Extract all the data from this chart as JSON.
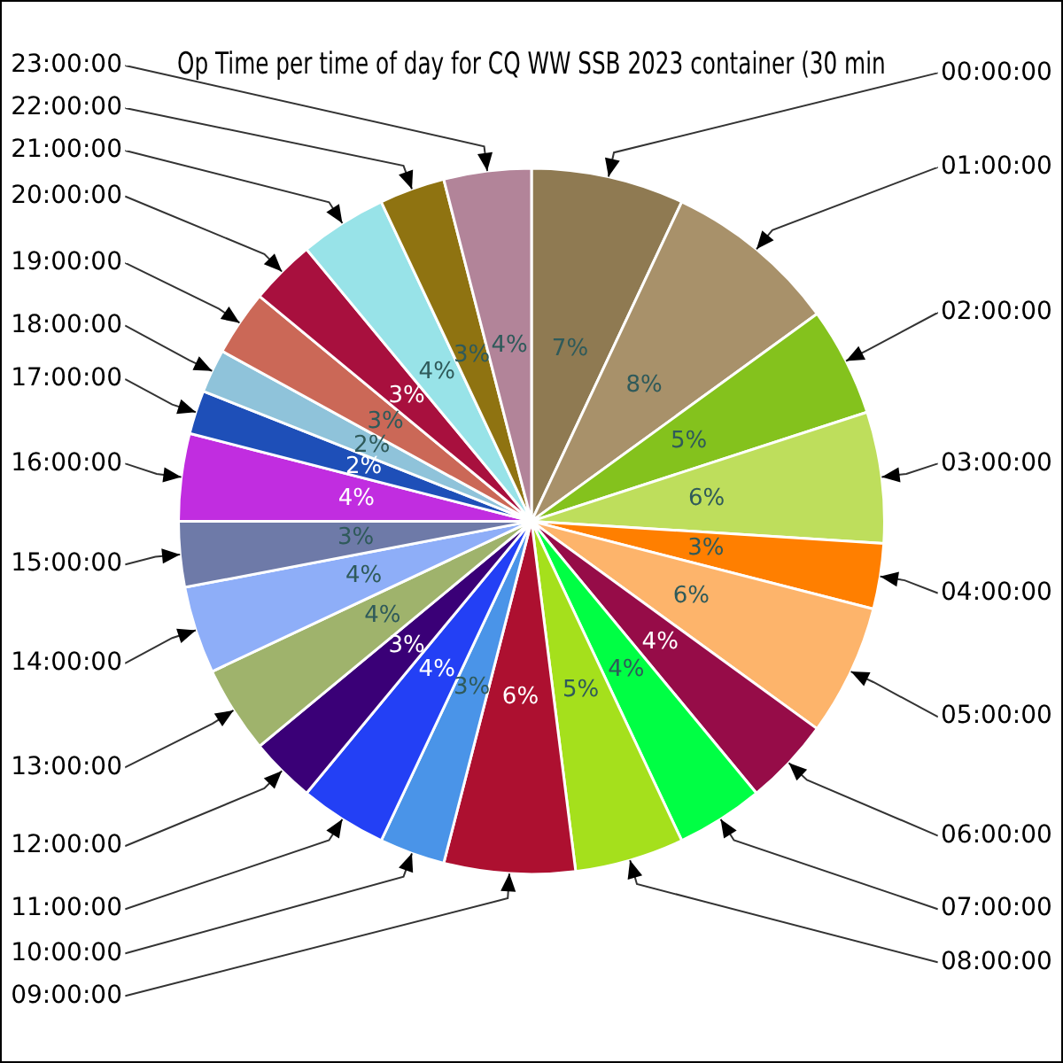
{
  "chart_data": {
    "type": "pie",
    "title": "Op Time per time of day for CQ WW SSB 2023 container (30 min",
    "categories": [
      "00:00:00",
      "01:00:00",
      "02:00:00",
      "03:00:00",
      "04:00:00",
      "05:00:00",
      "06:00:00",
      "07:00:00",
      "08:00:00",
      "09:00:00",
      "10:00:00",
      "11:00:00",
      "12:00:00",
      "13:00:00",
      "14:00:00",
      "15:00:00",
      "16:00:00",
      "17:00:00",
      "18:00:00",
      "19:00:00",
      "20:00:00",
      "21:00:00",
      "22:00:00",
      "23:00:00"
    ],
    "values": [
      7,
      8,
      5,
      6,
      3,
      6,
      4,
      4,
      5,
      6,
      3,
      4,
      3,
      4,
      4,
      3,
      4,
      2,
      2,
      3,
      3,
      4,
      3,
      4
    ],
    "colors": [
      "#8f7a52",
      "#a8916a",
      "#84c21d",
      "#bede5c",
      "#ff7f00",
      "#fdb46b",
      "#960c48",
      "#00ff44",
      "#a5e01c",
      "#ad1030",
      "#4a94e8",
      "#2340f5",
      "#3a0077",
      "#9fb36c",
      "#8eaef8",
      "#6e7aa8",
      "#c12de0",
      "#1e4fb8",
      "#8fc3da",
      "#cb6857",
      "#a8103e",
      "#98e3e8",
      "#8f7311",
      "#b28499"
    ],
    "value_labels": [
      "7%",
      "8%",
      "5%",
      "6%",
      "3%",
      "6%",
      "4%",
      "4%",
      "5%",
      "6%",
      "3%",
      "4%",
      "3%",
      "4%",
      "4%",
      "3%",
      "4%",
      "2%",
      "2%",
      "3%",
      "3%",
      "4%",
      "3%",
      "4%"
    ],
    "legend": false
  }
}
